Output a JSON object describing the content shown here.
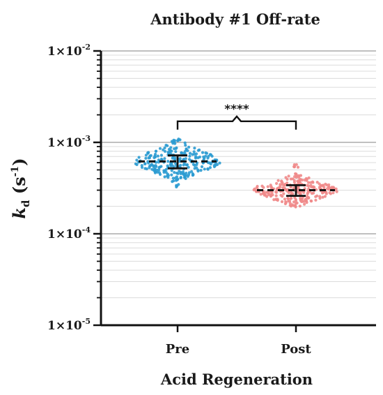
{
  "chart_data": {
    "type": "scatter",
    "title": "Antibody #1 Off-rate",
    "xlabel": "Acid Regeneration",
    "ylabel": {
      "base": "k",
      "sub": "d",
      "unit_open": "(s",
      "unit_sup": "-1",
      "unit_close": ")"
    },
    "yscale": "log",
    "ylim": [
      1e-05,
      0.01
    ],
    "yticks": [
      {
        "value": 0.01,
        "mantissa": "1×10",
        "exp": "-2"
      },
      {
        "value": 0.001,
        "mantissa": "1×10",
        "exp": "-3"
      },
      {
        "value": 0.0001,
        "mantissa": "1×10",
        "exp": "-4"
      },
      {
        "value": 1e-05,
        "mantissa": "1×10",
        "exp": "-5"
      }
    ],
    "grid": true,
    "categories": [
      "Pre",
      "Post"
    ],
    "series": [
      {
        "category": "Pre",
        "color": "#2b9bd1",
        "median": 0.00062,
        "q1": 0.00052,
        "q3": 0.00072,
        "min": 0.00032,
        "max": 0.0011
      },
      {
        "category": "Post",
        "color": "#f08a8a",
        "median": 0.0003,
        "q1": 0.00026,
        "q3": 0.00034,
        "min": 0.00019,
        "max": 0.00058
      }
    ],
    "significance": {
      "from": "Pre",
      "to": "Post",
      "label": "****",
      "y": 0.0017
    }
  }
}
